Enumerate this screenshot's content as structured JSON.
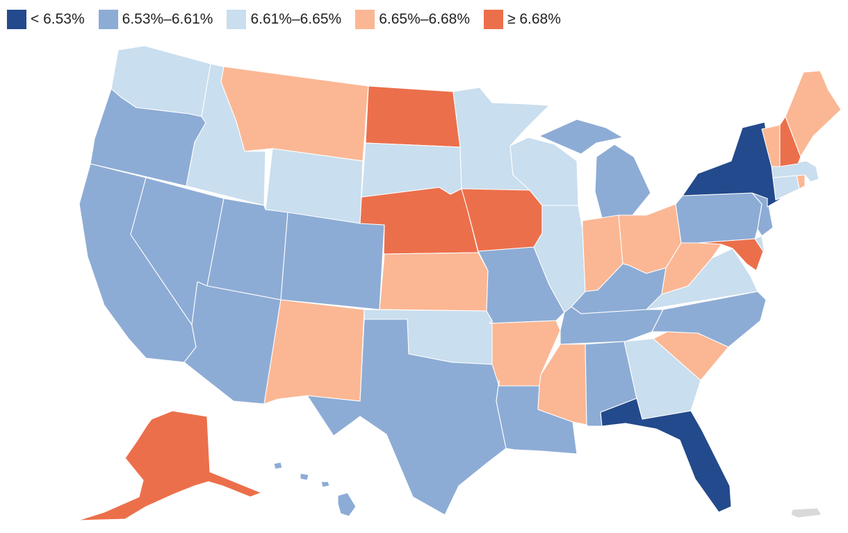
{
  "legend": [
    {
      "label": "< 6.53%",
      "color": "#234a8c"
    },
    {
      "label": "6.53%–6.61%",
      "color": "#8dacd5"
    },
    {
      "label": "6.61%–6.65%",
      "color": "#c9deee"
    },
    {
      "label": "6.65%–6.68%",
      "color": "#fbb794"
    },
    {
      "label": "≥ 6.68%",
      "color": "#ec6f4b"
    }
  ],
  "no_data_color": "#d9d9d9",
  "states": [
    {
      "id": "WA",
      "bin": 2
    },
    {
      "id": "OR",
      "bin": 1
    },
    {
      "id": "CA",
      "bin": 1
    },
    {
      "id": "ID",
      "bin": 2
    },
    {
      "id": "NV",
      "bin": 1
    },
    {
      "id": "MT",
      "bin": 3
    },
    {
      "id": "WY",
      "bin": 2
    },
    {
      "id": "UT",
      "bin": 1
    },
    {
      "id": "AZ",
      "bin": 1
    },
    {
      "id": "CO",
      "bin": 1
    },
    {
      "id": "NM",
      "bin": 3
    },
    {
      "id": "ND",
      "bin": 4
    },
    {
      "id": "SD",
      "bin": 2
    },
    {
      "id": "NE",
      "bin": 4
    },
    {
      "id": "KS",
      "bin": 3
    },
    {
      "id": "OK",
      "bin": 2
    },
    {
      "id": "TX",
      "bin": 1
    },
    {
      "id": "MN",
      "bin": 2
    },
    {
      "id": "IA",
      "bin": 4
    },
    {
      "id": "MO",
      "bin": 1
    },
    {
      "id": "AR",
      "bin": 3
    },
    {
      "id": "LA",
      "bin": 1
    },
    {
      "id": "WI",
      "bin": 2
    },
    {
      "id": "IL",
      "bin": 2
    },
    {
      "id": "MI",
      "bin": 1
    },
    {
      "id": "IN",
      "bin": 3
    },
    {
      "id": "OH",
      "bin": 3
    },
    {
      "id": "KY",
      "bin": 1
    },
    {
      "id": "TN",
      "bin": 1
    },
    {
      "id": "MS",
      "bin": 3
    },
    {
      "id": "AL",
      "bin": 1
    },
    {
      "id": "GA",
      "bin": 2
    },
    {
      "id": "FL",
      "bin": 0
    },
    {
      "id": "SC",
      "bin": 3
    },
    {
      "id": "NC",
      "bin": 1
    },
    {
      "id": "VA",
      "bin": 2
    },
    {
      "id": "WV",
      "bin": 3
    },
    {
      "id": "MD",
      "bin": 4
    },
    {
      "id": "DE",
      "bin": 2
    },
    {
      "id": "PA",
      "bin": 1
    },
    {
      "id": "NJ",
      "bin": 1
    },
    {
      "id": "NY",
      "bin": 0
    },
    {
      "id": "CT",
      "bin": 2
    },
    {
      "id": "RI",
      "bin": 3
    },
    {
      "id": "MA",
      "bin": 2
    },
    {
      "id": "VT",
      "bin": 3
    },
    {
      "id": "NH",
      "bin": 4
    },
    {
      "id": "ME",
      "bin": 3
    },
    {
      "id": "AK",
      "bin": 4
    },
    {
      "id": "HI",
      "bin": 1
    },
    {
      "id": "PR",
      "bin": -1
    }
  ]
}
